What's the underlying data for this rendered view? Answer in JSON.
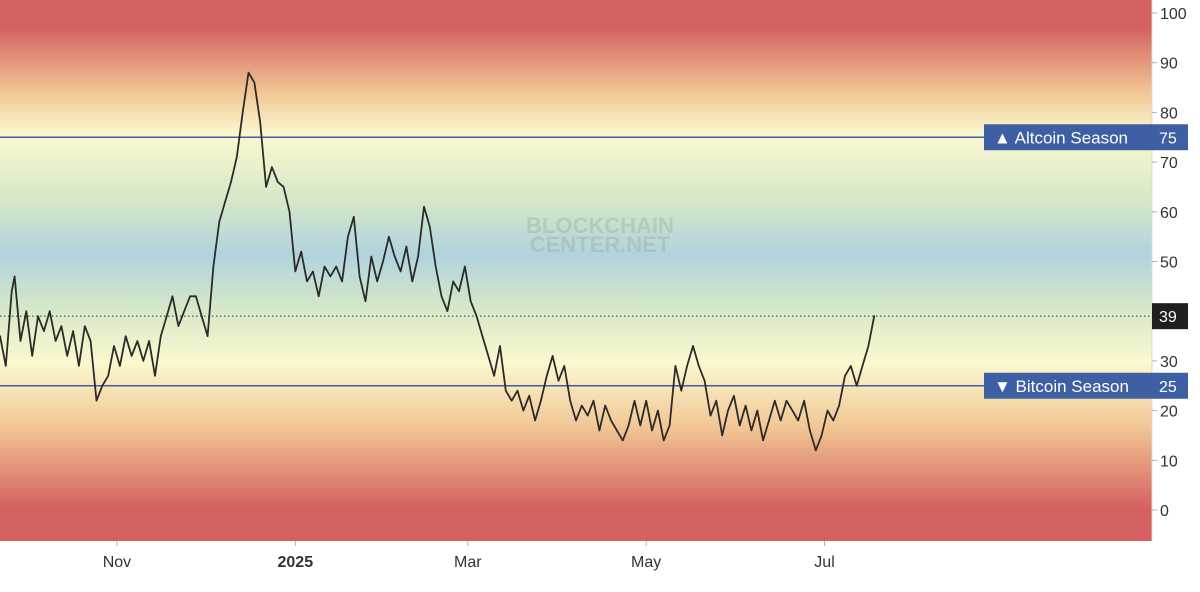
{
  "chart_data": {
    "type": "line",
    "title": "",
    "xlabel": "",
    "ylabel": "",
    "ylim": [
      -6,
      103
    ],
    "y_ticks": [
      0,
      10,
      20,
      30,
      40,
      50,
      60,
      70,
      80,
      90,
      100
    ],
    "x_ticks": [
      {
        "label": "Nov",
        "bold": false,
        "at": "2024-11-01"
      },
      {
        "label": "2025",
        "bold": true,
        "at": "2025-01-01"
      },
      {
        "label": "Mar",
        "bold": false,
        "at": "2025-03-01"
      },
      {
        "label": "May",
        "bold": false,
        "at": "2025-05-01"
      },
      {
        "label": "Jul",
        "bold": false,
        "at": "2025-07-01"
      }
    ],
    "xlim": [
      "2024-09-22",
      "2025-10-21"
    ],
    "watermark": [
      "BLOCKCHAIN",
      "CENTER.NET"
    ],
    "current": {
      "value": 39,
      "label": "39"
    },
    "thresholds": [
      {
        "name": "Altcoin Season",
        "value": 75,
        "label": "75",
        "marker": "▲",
        "color": "#3e5fa3"
      },
      {
        "name": "Bitcoin Season",
        "value": 25,
        "label": "25",
        "marker": "▼",
        "color": "#3e5fa3"
      }
    ],
    "grid": false,
    "line_color": "#2b2b2b",
    "background_gradient": {
      "red": "#d46060",
      "orange": "#f2c694",
      "yellow": "#fbf8cf",
      "green": "#d5e8c8",
      "blue": "#b1d3dd"
    },
    "series": [
      {
        "points": [
          [
            "2024-09-22",
            35
          ],
          [
            "2024-09-24",
            29
          ],
          [
            "2024-09-26",
            44
          ],
          [
            "2024-09-27",
            47
          ],
          [
            "2024-09-29",
            34
          ],
          [
            "2024-10-01",
            40
          ],
          [
            "2024-10-03",
            31
          ],
          [
            "2024-10-05",
            39
          ],
          [
            "2024-10-07",
            36
          ],
          [
            "2024-10-09",
            40
          ],
          [
            "2024-10-11",
            34
          ],
          [
            "2024-10-13",
            37
          ],
          [
            "2024-10-15",
            31
          ],
          [
            "2024-10-17",
            36
          ],
          [
            "2024-10-19",
            29
          ],
          [
            "2024-10-21",
            37
          ],
          [
            "2024-10-23",
            34
          ],
          [
            "2024-10-25",
            22
          ],
          [
            "2024-10-27",
            25
          ],
          [
            "2024-10-29",
            27
          ],
          [
            "2024-10-31",
            33
          ],
          [
            "2024-11-02",
            29
          ],
          [
            "2024-11-04",
            35
          ],
          [
            "2024-11-06",
            31
          ],
          [
            "2024-11-08",
            34
          ],
          [
            "2024-11-10",
            30
          ],
          [
            "2024-11-12",
            34
          ],
          [
            "2024-11-14",
            27
          ],
          [
            "2024-11-16",
            35
          ],
          [
            "2024-11-18",
            39
          ],
          [
            "2024-11-20",
            43
          ],
          [
            "2024-11-22",
            37
          ],
          [
            "2024-11-24",
            40
          ],
          [
            "2024-11-26",
            43
          ],
          [
            "2024-11-28",
            43
          ],
          [
            "2024-11-30",
            39
          ],
          [
            "2024-12-02",
            35
          ],
          [
            "2024-12-04",
            49
          ],
          [
            "2024-12-06",
            58
          ],
          [
            "2024-12-08",
            62
          ],
          [
            "2024-12-10",
            66
          ],
          [
            "2024-12-12",
            71
          ],
          [
            "2024-12-14",
            80
          ],
          [
            "2024-12-16",
            88
          ],
          [
            "2024-12-18",
            86
          ],
          [
            "2024-12-20",
            78
          ],
          [
            "2024-12-22",
            65
          ],
          [
            "2024-12-24",
            69
          ],
          [
            "2024-12-26",
            66
          ],
          [
            "2024-12-28",
            65
          ],
          [
            "2024-12-30",
            60
          ],
          [
            "2025-01-01",
            48
          ],
          [
            "2025-01-03",
            52
          ],
          [
            "2025-01-05",
            46
          ],
          [
            "2025-01-07",
            48
          ],
          [
            "2025-01-09",
            43
          ],
          [
            "2025-01-11",
            49
          ],
          [
            "2025-01-13",
            47
          ],
          [
            "2025-01-15",
            49
          ],
          [
            "2025-01-17",
            46
          ],
          [
            "2025-01-19",
            55
          ],
          [
            "2025-01-21",
            59
          ],
          [
            "2025-01-23",
            47
          ],
          [
            "2025-01-25",
            42
          ],
          [
            "2025-01-27",
            51
          ],
          [
            "2025-01-29",
            46
          ],
          [
            "2025-01-31",
            50
          ],
          [
            "2025-02-02",
            55
          ],
          [
            "2025-02-04",
            51
          ],
          [
            "2025-02-06",
            48
          ],
          [
            "2025-02-08",
            53
          ],
          [
            "2025-02-10",
            46
          ],
          [
            "2025-02-12",
            51
          ],
          [
            "2025-02-14",
            61
          ],
          [
            "2025-02-16",
            57
          ],
          [
            "2025-02-18",
            49
          ],
          [
            "2025-02-20",
            43
          ],
          [
            "2025-02-22",
            40
          ],
          [
            "2025-02-24",
            46
          ],
          [
            "2025-02-26",
            44
          ],
          [
            "2025-02-28",
            49
          ],
          [
            "2025-03-02",
            42
          ],
          [
            "2025-03-04",
            39
          ],
          [
            "2025-03-06",
            35
          ],
          [
            "2025-03-08",
            31
          ],
          [
            "2025-03-10",
            27
          ],
          [
            "2025-03-12",
            33
          ],
          [
            "2025-03-14",
            24
          ],
          [
            "2025-03-16",
            22
          ],
          [
            "2025-03-18",
            24
          ],
          [
            "2025-03-20",
            20
          ],
          [
            "2025-03-22",
            23
          ],
          [
            "2025-03-24",
            18
          ],
          [
            "2025-03-26",
            22
          ],
          [
            "2025-03-28",
            27
          ],
          [
            "2025-03-30",
            31
          ],
          [
            "2025-04-01",
            26
          ],
          [
            "2025-04-03",
            29
          ],
          [
            "2025-04-05",
            22
          ],
          [
            "2025-04-07",
            18
          ],
          [
            "2025-04-09",
            21
          ],
          [
            "2025-04-11",
            19
          ],
          [
            "2025-04-13",
            22
          ],
          [
            "2025-04-15",
            16
          ],
          [
            "2025-04-17",
            21
          ],
          [
            "2025-04-19",
            18
          ],
          [
            "2025-04-21",
            16
          ],
          [
            "2025-04-23",
            14
          ],
          [
            "2025-04-25",
            17
          ],
          [
            "2025-04-27",
            22
          ],
          [
            "2025-04-29",
            17
          ],
          [
            "2025-05-01",
            22
          ],
          [
            "2025-05-03",
            16
          ],
          [
            "2025-05-05",
            20
          ],
          [
            "2025-05-07",
            14
          ],
          [
            "2025-05-09",
            17
          ],
          [
            "2025-05-11",
            29
          ],
          [
            "2025-05-13",
            24
          ],
          [
            "2025-05-15",
            29
          ],
          [
            "2025-05-17",
            33
          ],
          [
            "2025-05-19",
            29
          ],
          [
            "2025-05-21",
            26
          ],
          [
            "2025-05-23",
            19
          ],
          [
            "2025-05-25",
            22
          ],
          [
            "2025-05-27",
            15
          ],
          [
            "2025-05-29",
            20
          ],
          [
            "2025-05-31",
            23
          ],
          [
            "2025-06-02",
            17
          ],
          [
            "2025-06-04",
            21
          ],
          [
            "2025-06-06",
            16
          ],
          [
            "2025-06-08",
            20
          ],
          [
            "2025-06-10",
            14
          ],
          [
            "2025-06-12",
            18
          ],
          [
            "2025-06-14",
            22
          ],
          [
            "2025-06-16",
            18
          ],
          [
            "2025-06-18",
            22
          ],
          [
            "2025-06-20",
            20
          ],
          [
            "2025-06-22",
            18
          ],
          [
            "2025-06-24",
            22
          ],
          [
            "2025-06-26",
            16
          ],
          [
            "2025-06-28",
            12
          ],
          [
            "2025-06-30",
            15
          ],
          [
            "2025-07-02",
            20
          ],
          [
            "2025-07-04",
            18
          ],
          [
            "2025-07-06",
            21
          ],
          [
            "2025-07-08",
            27
          ],
          [
            "2025-07-10",
            29
          ],
          [
            "2025-07-12",
            25
          ],
          [
            "2025-07-14",
            29
          ],
          [
            "2025-07-16",
            33
          ],
          [
            "2025-07-18",
            39
          ]
        ]
      }
    ]
  }
}
